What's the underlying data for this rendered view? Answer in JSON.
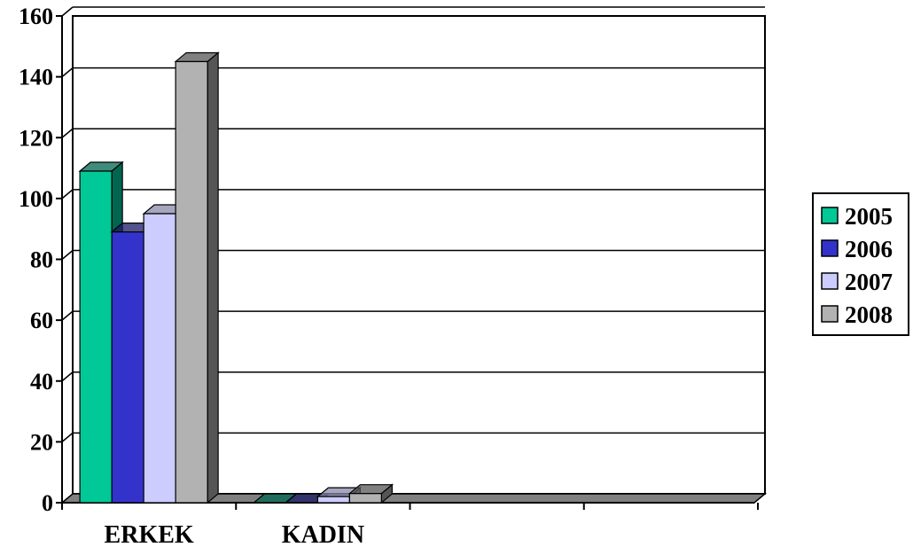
{
  "chart_data": {
    "type": "bar",
    "title": "",
    "xlabel": "",
    "ylabel": "",
    "categories": [
      "ERKEK",
      "KADIN"
    ],
    "series": [
      {
        "name": "2005",
        "values": [
          109,
          0
        ],
        "color": "#00c896",
        "side_color": "#006650"
      },
      {
        "name": "2006",
        "values": [
          89,
          0
        ],
        "color": "#3333cc",
        "side_color": "#1a1a66"
      },
      {
        "name": "2007",
        "values": [
          95,
          2
        ],
        "color": "#ccccff",
        "side_color": "#8888aa"
      },
      {
        "name": "2008",
        "values": [
          145,
          3
        ],
        "color": "#b2b2b2",
        "side_color": "#555555"
      }
    ],
    "ylim": [
      0,
      160
    ],
    "yticks": [
      0,
      20,
      40,
      60,
      80,
      100,
      120,
      140,
      160
    ],
    "grid": true,
    "legend_position": "right",
    "style": "3d-clustered-column"
  }
}
